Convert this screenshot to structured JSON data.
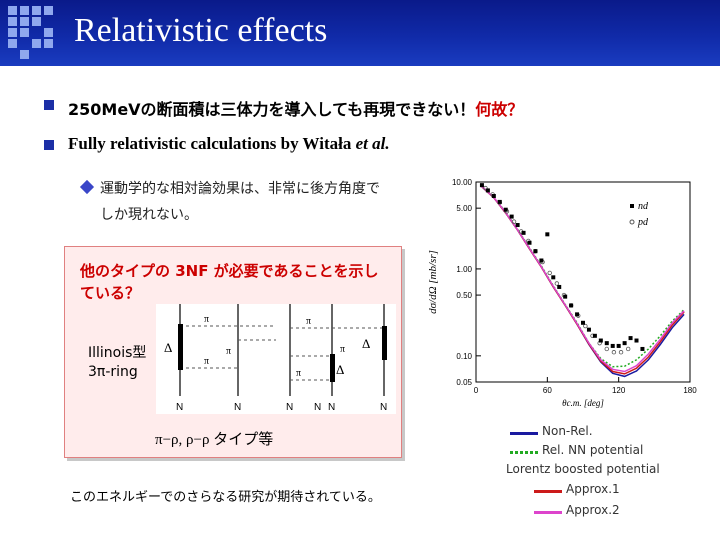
{
  "header": {
    "title": "Relativistic effects"
  },
  "bullets": [
    {
      "text_main": "250MeVの断面積は三体力を導入しても再現できない！",
      "text_emph": "何故？"
    },
    {
      "text_main": "Fully relativistic calculations by Witała ",
      "text_emph": "et al."
    }
  ],
  "sub_bullet": "運動学的な相対論効果は、非常に後方角度でしか現れない。",
  "red_box": {
    "text": "他のタイプの 3NF が必要であることを示している？",
    "label_line1": "Illinois型",
    "label_line2": "3π-ring",
    "pi_rho": "π−ρ, ρ−ρ タイプ等",
    "diagram": {
      "pi_labels": [
        "π",
        "π",
        "π",
        "π",
        "π",
        "π"
      ],
      "delta_labels": [
        "Δ",
        "Δ",
        "Δ"
      ],
      "n_labels": [
        "N",
        "N",
        "N",
        "N",
        "N",
        "N"
      ]
    }
  },
  "bottom_text": "このエネルギーでのさらなる研究が期待されている。",
  "chart_data": {
    "type": "line",
    "xlabel": "θc.m. [deg]",
    "ylabel": "dσ/dΩ [mb/sr]",
    "xlim": [
      0,
      180
    ],
    "ylim": [
      0.05,
      10
    ],
    "yscale": "log",
    "x_ticks": [
      "0",
      "60",
      "120",
      "180"
    ],
    "y_ticks": [
      "10.00",
      "5.00",
      "1.00",
      "0.50",
      "0.10",
      "0.05"
    ],
    "y_tick_values": [
      10,
      5,
      1,
      0.5,
      0.1,
      0.05
    ],
    "legend_markers": [
      {
        "label": "nd",
        "marker": "filled-square"
      },
      {
        "label": "pd",
        "marker": "open-circle"
      }
    ],
    "series": [
      {
        "name": "Non-Rel.",
        "color": "#1a1aa0",
        "style": "solid",
        "x": [
          5,
          15,
          25,
          35,
          45,
          55,
          65,
          75,
          85,
          95,
          105,
          115,
          125,
          135,
          145,
          155,
          165,
          175
        ],
        "y": [
          8.8,
          6.6,
          4.4,
          2.8,
          1.7,
          1.05,
          0.62,
          0.38,
          0.23,
          0.135,
          0.085,
          0.063,
          0.058,
          0.067,
          0.09,
          0.135,
          0.21,
          0.3
        ]
      },
      {
        "name": "Rel. NN potential",
        "color": "#22aa22",
        "style": "dotted",
        "x": [
          5,
          15,
          25,
          35,
          45,
          55,
          65,
          75,
          85,
          95,
          105,
          115,
          125,
          135,
          145,
          155,
          165,
          175
        ],
        "y": [
          8.9,
          6.7,
          4.5,
          2.85,
          1.75,
          1.08,
          0.64,
          0.39,
          0.24,
          0.14,
          0.093,
          0.075,
          0.076,
          0.09,
          0.12,
          0.17,
          0.25,
          0.34
        ]
      },
      {
        "name": "Approx.1",
        "color": "#cc1a1a",
        "style": "solid",
        "x": [
          5,
          15,
          25,
          35,
          45,
          55,
          65,
          75,
          85,
          95,
          105,
          115,
          125,
          135,
          145,
          155,
          165,
          175
        ],
        "y": [
          8.8,
          6.6,
          4.4,
          2.8,
          1.7,
          1.05,
          0.62,
          0.38,
          0.23,
          0.137,
          0.087,
          0.066,
          0.062,
          0.072,
          0.097,
          0.145,
          0.225,
          0.32
        ]
      },
      {
        "name": "Approx.2",
        "color": "#dd44cc",
        "style": "solid",
        "x": [
          5,
          15,
          25,
          35,
          45,
          55,
          65,
          75,
          85,
          95,
          105,
          115,
          125,
          135,
          145,
          155,
          165,
          175
        ],
        "y": [
          8.85,
          6.65,
          4.45,
          2.82,
          1.72,
          1.06,
          0.63,
          0.385,
          0.235,
          0.14,
          0.09,
          0.07,
          0.066,
          0.077,
          0.105,
          0.155,
          0.24,
          0.33
        ]
      }
    ],
    "points_nd": {
      "x": [
        5,
        10,
        15,
        20,
        25,
        30,
        35,
        40,
        45,
        50,
        55,
        60,
        65,
        70,
        75,
        80,
        85,
        90,
        95,
        100,
        105,
        110,
        115,
        120,
        125,
        130,
        135,
        140
      ],
      "y": [
        9.2,
        8.0,
        6.9,
        5.9,
        4.8,
        4.0,
        3.2,
        2.6,
        2.0,
        1.6,
        1.25,
        2.5,
        0.8,
        0.62,
        0.48,
        0.38,
        0.3,
        0.24,
        0.2,
        0.17,
        0.15,
        0.14,
        0.13,
        0.13,
        0.14,
        0.16,
        0.15,
        0.12
      ]
    },
    "points_pd": {
      "x": [
        8,
        14,
        20,
        26,
        32,
        38,
        44,
        50,
        56,
        62,
        68,
        74,
        80,
        86,
        92,
        98,
        104,
        110,
        116,
        122,
        128
      ],
      "y": [
        8.5,
        7.2,
        5.8,
        4.6,
        3.5,
        2.7,
        2.1,
        1.6,
        1.2,
        0.9,
        0.68,
        0.5,
        0.38,
        0.29,
        0.22,
        0.17,
        0.14,
        0.12,
        0.11,
        0.11,
        0.12
      ]
    },
    "legend": [
      {
        "label": "Non-Rel.",
        "color": "#1a1aa0",
        "style": "solid"
      },
      {
        "label": "Rel. NN potential",
        "color": "#22aa22",
        "style": "dotted"
      },
      {
        "label": "Lorentz boosted potential",
        "color": "",
        "style": "none"
      },
      {
        "label": "Approx.1",
        "color": "#cc1a1a",
        "style": "solid"
      },
      {
        "label": "Approx.2",
        "color": "#dd44cc",
        "style": "solid"
      }
    ]
  }
}
